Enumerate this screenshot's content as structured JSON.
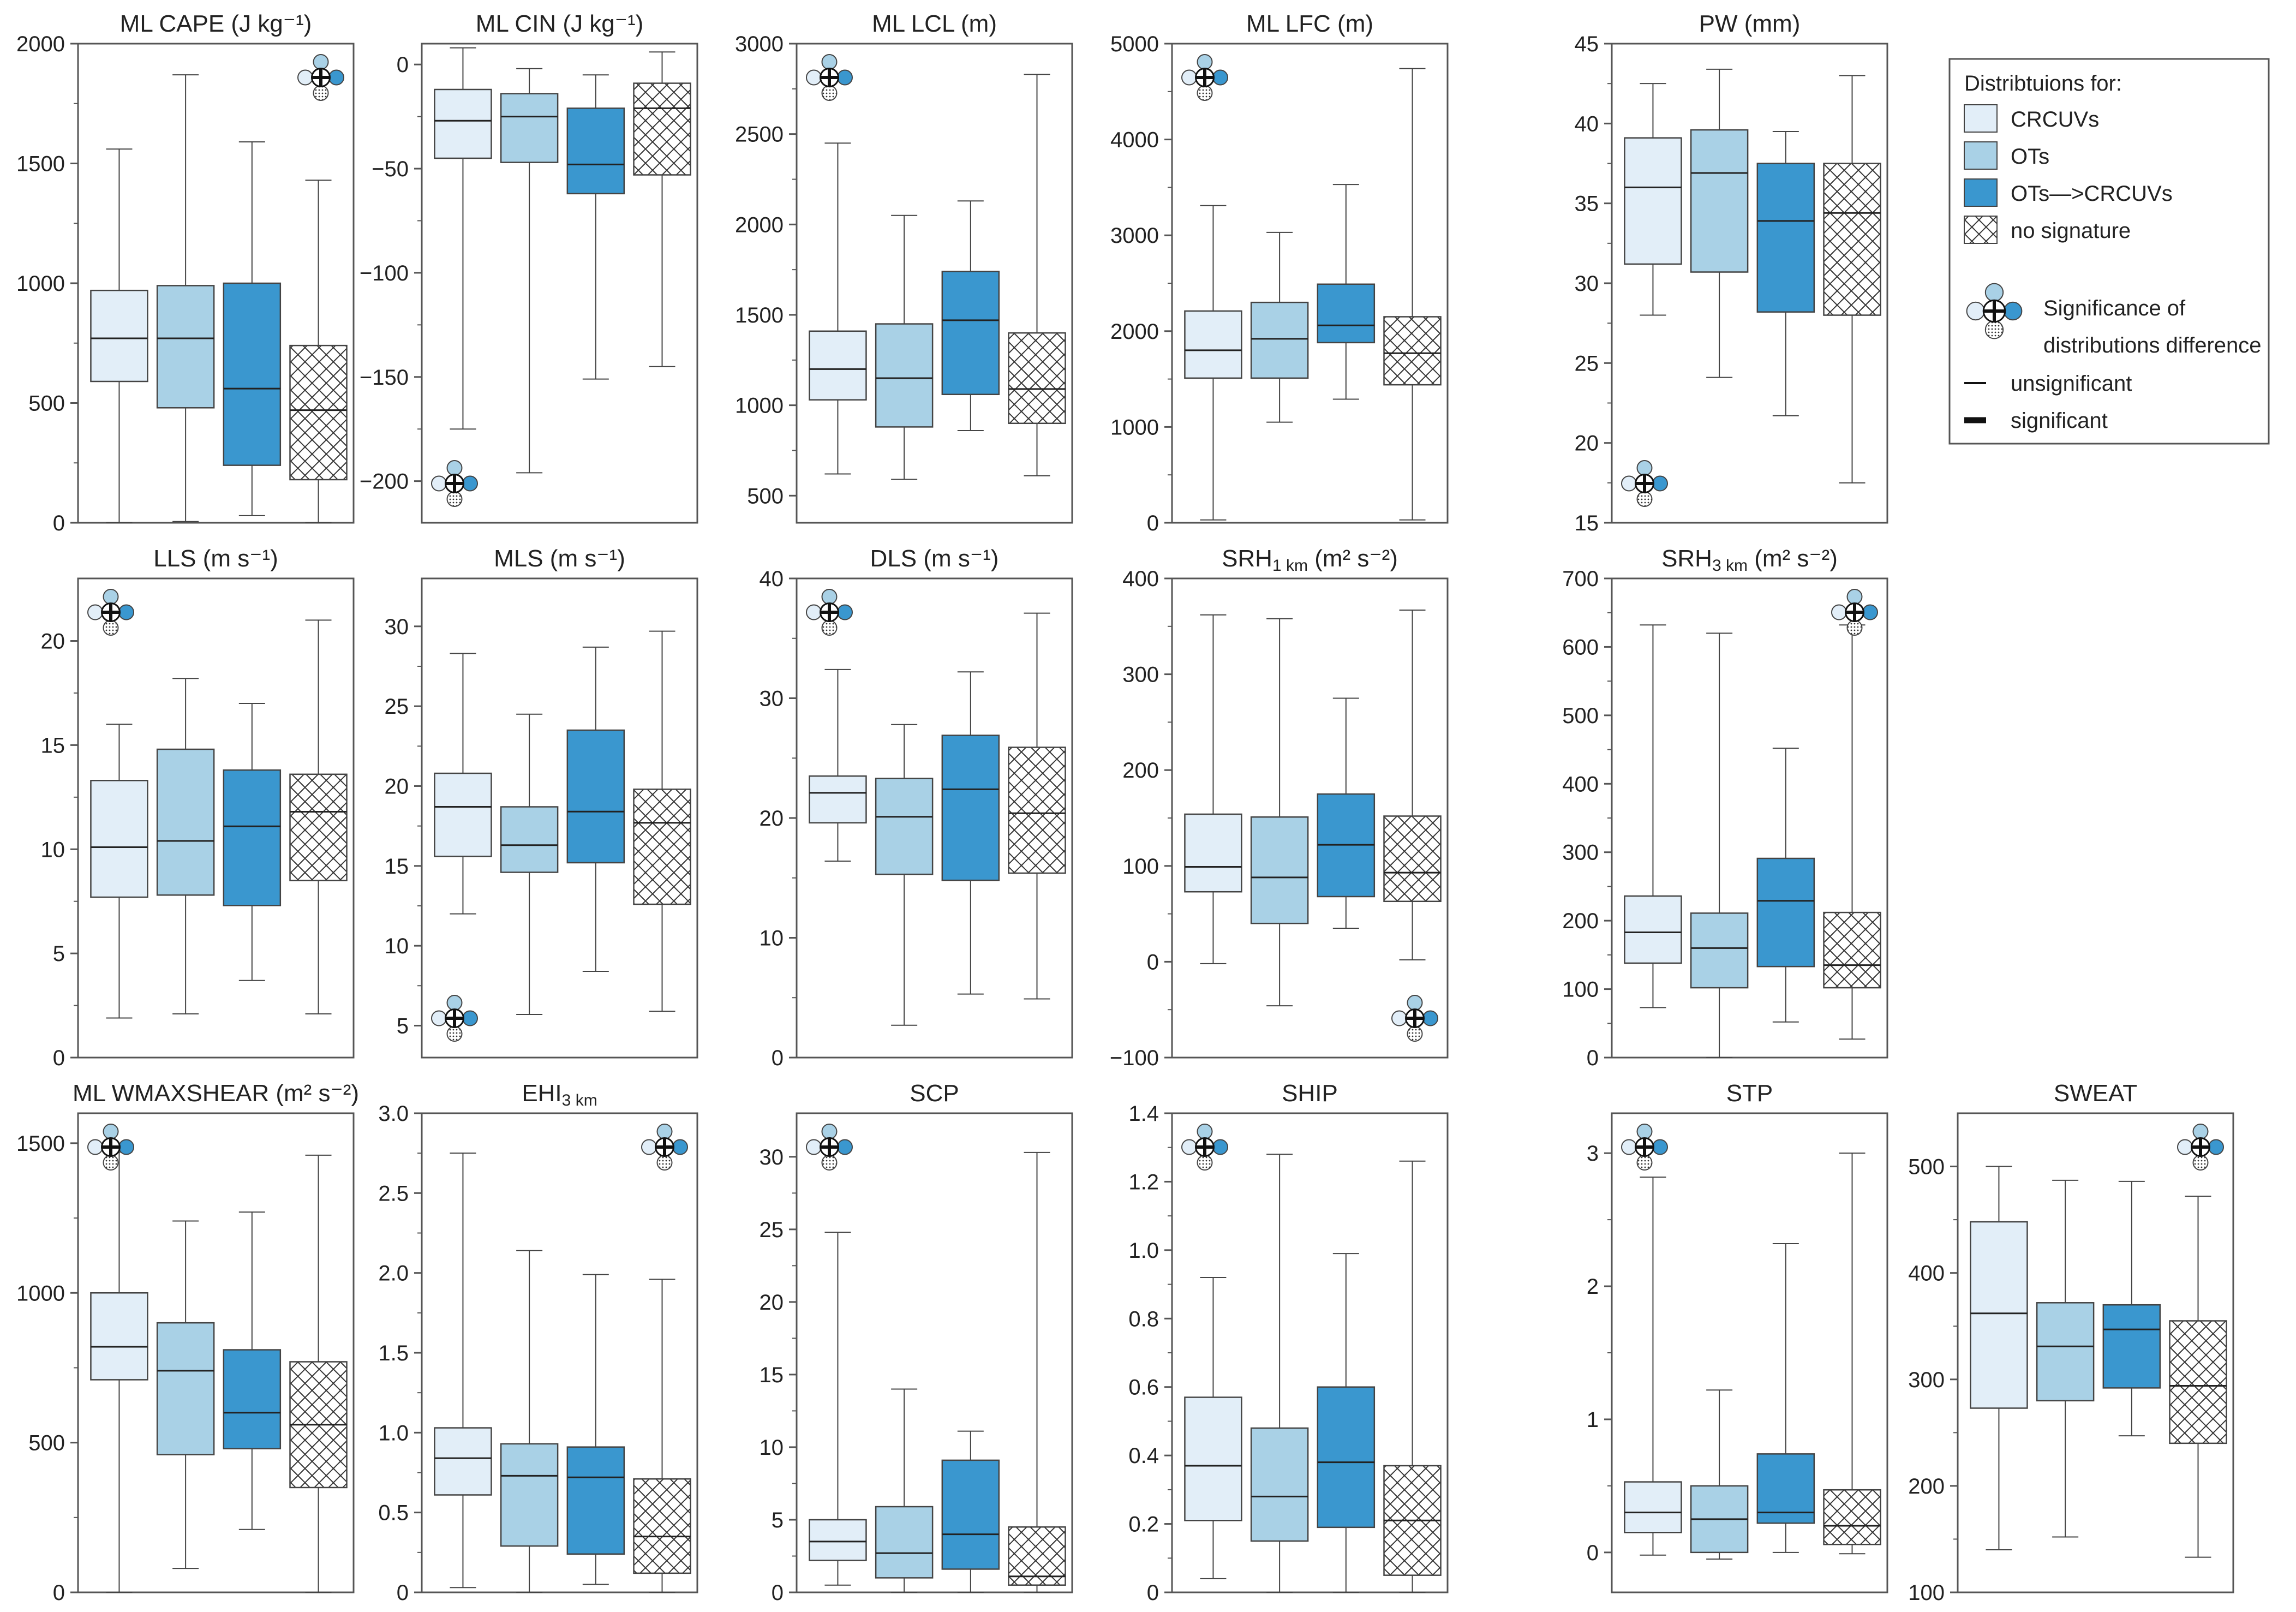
{
  "colors": {
    "crcuv": "#e2eef8",
    "ot": "#a9d1e6",
    "ot_to_crcuv": "#3a97cf",
    "none": "#ffffff",
    "edge": "#444444",
    "icon_top": "#a9d1e6",
    "icon_left": "#e2eef8",
    "icon_right": "#3a97cf"
  },
  "legend": {
    "title": "Distribtuions for:",
    "entries": [
      {
        "key": "crcuv",
        "label": "CRCUVs"
      },
      {
        "key": "ot",
        "label": "OTs"
      },
      {
        "key": "ot_to_crcuv",
        "label": "OTs—>CRCUVs"
      },
      {
        "key": "none",
        "label": "no signature"
      }
    ],
    "significance_line1": "Significance of",
    "significance_line2": "distributions difference",
    "unsignificant_label": "unsignificant",
    "significant_label": "significant"
  },
  "chart_data": [
    {
      "id": "mlcape",
      "type": "box",
      "title": "ML CAPE (J kg⁻¹)",
      "ylim": [
        0,
        2000
      ],
      "yticks": [
        0,
        500,
        1000,
        1500,
        2000
      ],
      "tick_labels": [
        "0",
        "500",
        "1000",
        "1500",
        "2000"
      ],
      "icon": "top-right",
      "boxes": [
        {
          "min": 0,
          "q1": 590,
          "median": 770,
          "q3": 970,
          "max": 1560
        },
        {
          "min": 5,
          "q1": 480,
          "median": 770,
          "q3": 990,
          "max": 1870
        },
        {
          "min": 30,
          "q1": 240,
          "median": 560,
          "q3": 1000,
          "max": 1590
        },
        {
          "min": 0,
          "q1": 180,
          "median": 470,
          "q3": 740,
          "max": 1430
        }
      ]
    },
    {
      "id": "mlcin",
      "type": "box",
      "title": "ML CIN (J kg⁻¹)",
      "ylim": [
        -220,
        10
      ],
      "yticks": [
        -200,
        -150,
        -100,
        -50,
        0
      ],
      "tick_labels": [
        "−200",
        "−150",
        "−100",
        "−50",
        "0"
      ],
      "icon": "bottom-left",
      "boxes": [
        {
          "min": -175,
          "q1": -45,
          "median": -27,
          "q3": -12,
          "max": 8
        },
        {
          "min": -196,
          "q1": -47,
          "median": -25,
          "q3": -14,
          "max": -2
        },
        {
          "min": -151,
          "q1": -62,
          "median": -48,
          "q3": -21,
          "max": -5
        },
        {
          "min": -145,
          "q1": -53,
          "median": -21,
          "q3": -9,
          "max": 6
        }
      ]
    },
    {
      "id": "mllcl",
      "type": "box",
      "title": "ML LCL (m)",
      "ylim": [
        350,
        3000
      ],
      "yticks": [
        500,
        1000,
        1500,
        2000,
        2500,
        3000
      ],
      "tick_labels": [
        "500",
        "1000",
        "1500",
        "2000",
        "2500",
        "3000"
      ],
      "icon": "top-left",
      "boxes": [
        {
          "min": 620,
          "q1": 1030,
          "median": 1200,
          "q3": 1410,
          "max": 2450
        },
        {
          "min": 590,
          "q1": 880,
          "median": 1150,
          "q3": 1450,
          "max": 2050
        },
        {
          "min": 860,
          "q1": 1060,
          "median": 1470,
          "q3": 1740,
          "max": 2130
        },
        {
          "min": 610,
          "q1": 900,
          "median": 1090,
          "q3": 1400,
          "max": 2830
        }
      ]
    },
    {
      "id": "mllfc",
      "type": "box",
      "title": "ML LFC (m)",
      "ylim": [
        0,
        5000
      ],
      "yticks": [
        0,
        1000,
        2000,
        3000,
        4000,
        5000
      ],
      "tick_labels": [
        "0",
        "1000",
        "2000",
        "3000",
        "4000",
        "5000"
      ],
      "icon": "top-left",
      "boxes": [
        {
          "min": 30,
          "q1": 1510,
          "median": 1800,
          "q3": 2210,
          "max": 3310
        },
        {
          "min": 1050,
          "q1": 1510,
          "median": 1920,
          "q3": 2300,
          "max": 3030
        },
        {
          "min": 1290,
          "q1": 1880,
          "median": 2060,
          "q3": 2490,
          "max": 3530
        },
        {
          "min": 30,
          "q1": 1440,
          "median": 1770,
          "q3": 2150,
          "max": 4740
        }
      ]
    },
    {
      "id": "pw",
      "type": "box",
      "title": "PW (mm)",
      "ylim": [
        15,
        45
      ],
      "yticks": [
        15,
        20,
        25,
        30,
        35,
        40,
        45
      ],
      "tick_labels": [
        "15",
        "20",
        "25",
        "30",
        "35",
        "40",
        "45"
      ],
      "icon": "bottom-left",
      "boxes": [
        {
          "min": 28,
          "q1": 31.2,
          "median": 36,
          "q3": 39.1,
          "max": 42.5
        },
        {
          "min": 24.1,
          "q1": 30.7,
          "median": 36.9,
          "q3": 39.6,
          "max": 43.4
        },
        {
          "min": 21.7,
          "q1": 28.2,
          "median": 33.9,
          "q3": 37.5,
          "max": 39.5
        },
        {
          "min": 17.5,
          "q1": 28,
          "median": 34.4,
          "q3": 37.5,
          "max": 43
        }
      ]
    },
    {
      "id": "lls",
      "type": "box",
      "title": "LLS (m s⁻¹)",
      "ylim": [
        0,
        23
      ],
      "yticks": [
        0,
        5,
        10,
        15,
        20
      ],
      "tick_labels": [
        "0",
        "5",
        "10",
        "15",
        "20"
      ],
      "icon": "top-left",
      "boxes": [
        {
          "min": 1.9,
          "q1": 7.7,
          "median": 10.1,
          "q3": 13.3,
          "max": 16
        }
      ],
      "boxes_extra": [
        {
          "min": 2.1,
          "q1": 7.8,
          "median": 10.4,
          "q3": 14.8,
          "max": 18.2
        },
        {
          "min": 3.7,
          "q1": 7.3,
          "median": 11.1,
          "q3": 13.8,
          "max": 17
        },
        {
          "min": 2.1,
          "q1": 8.5,
          "median": 11.8,
          "q3": 13.6,
          "max": 21
        }
      ]
    },
    {
      "id": "mls",
      "type": "box",
      "title": "MLS (m s⁻¹)",
      "ylim": [
        3,
        33
      ],
      "yticks": [
        5,
        10,
        15,
        20,
        25,
        30
      ],
      "tick_labels": [
        "5",
        "10",
        "15",
        "20",
        "25",
        "30"
      ],
      "icon": "bottom-left",
      "boxes": [
        {
          "min": 12,
          "q1": 15.6,
          "median": 18.7,
          "q3": 20.8,
          "max": 28.3
        },
        {
          "min": 5.7,
          "q1": 14.6,
          "median": 16.3,
          "q3": 18.7,
          "max": 24.5
        },
        {
          "min": 8.4,
          "q1": 15.2,
          "median": 18.4,
          "q3": 23.5,
          "max": 28.7
        },
        {
          "min": 5.9,
          "q1": 12.6,
          "median": 17.7,
          "q3": 19.8,
          "max": 29.7
        }
      ]
    },
    {
      "id": "dls",
      "type": "box",
      "title": "DLS (m s⁻¹)",
      "ylim": [
        0,
        40
      ],
      "yticks": [
        0,
        10,
        20,
        30,
        40
      ],
      "tick_labels": [
        "0",
        "10",
        "20",
        "30",
        "40"
      ],
      "icon": "top-left",
      "boxes": [
        {
          "min": 16.4,
          "q1": 19.6,
          "median": 22.1,
          "q3": 23.5,
          "max": 32.4
        },
        {
          "min": 2.7,
          "q1": 15.3,
          "median": 20.1,
          "q3": 23.3,
          "max": 27.8
        },
        {
          "min": 5.3,
          "q1": 14.8,
          "median": 22.4,
          "q3": 26.9,
          "max": 32.2
        },
        {
          "min": 4.9,
          "q1": 15.4,
          "median": 20.4,
          "q3": 25.9,
          "max": 37.1
        }
      ]
    },
    {
      "id": "srh1",
      "type": "box",
      "title": "SRH",
      "title_sub": "1 km",
      "title_unit": " (m² s⁻²)",
      "ylim": [
        -100,
        400
      ],
      "yticks": [
        -100,
        0,
        100,
        200,
        300,
        400
      ],
      "tick_labels": [
        "−100",
        "0",
        "100",
        "200",
        "300",
        "400"
      ],
      "icon": "bottom-right",
      "boxes": [
        {
          "min": -2,
          "q1": 73,
          "median": 99,
          "q3": 154,
          "max": 362
        },
        {
          "min": -46,
          "q1": 40,
          "median": 88,
          "q3": 151,
          "max": 358
        },
        {
          "min": 35,
          "q1": 68,
          "median": 122,
          "q3": 175,
          "max": 275
        },
        {
          "min": 2,
          "q1": 63,
          "median": 93,
          "q3": 152,
          "max": 367
        }
      ]
    },
    {
      "id": "srh3",
      "type": "box",
      "title": "SRH",
      "title_sub": "3 km",
      "title_unit": " (m² s⁻²)",
      "ylim": [
        0,
        700
      ],
      "yticks": [
        0,
        100,
        200,
        300,
        400,
        500,
        600,
        700
      ],
      "tick_labels": [
        "0",
        "100",
        "200",
        "300",
        "400",
        "500",
        "600",
        "700"
      ],
      "icon": "top-right",
      "boxes": [
        {
          "min": 73,
          "q1": 138,
          "median": 183,
          "q3": 236,
          "max": 632
        },
        {
          "min": 0,
          "q1": 102,
          "median": 160,
          "q3": 211,
          "max": 620
        },
        {
          "min": 52,
          "q1": 133,
          "median": 229,
          "q3": 291,
          "max": 452
        },
        {
          "min": 27,
          "q1": 102,
          "median": 135,
          "q3": 212,
          "max": 632
        }
      ]
    },
    {
      "id": "mlwmaxshear",
      "type": "box",
      "title": "ML WMAXSHEAR (m² s⁻²)",
      "ylim": [
        0,
        1600
      ],
      "yticks": [
        0,
        500,
        1000,
        1500
      ],
      "tick_labels": [
        "0",
        "500",
        "1000",
        "1500"
      ],
      "icon": "top-left",
      "boxes": [
        {
          "min": 0,
          "q1": 710,
          "median": 820,
          "q3": 1000,
          "max": 1470
        },
        {
          "min": 80,
          "q1": 460,
          "median": 740,
          "q3": 900,
          "max": 1240
        },
        {
          "min": 210,
          "q1": 480,
          "median": 600,
          "q3": 810,
          "max": 1270
        },
        {
          "min": 0,
          "q1": 350,
          "median": 560,
          "q3": 770,
          "max": 1460
        }
      ]
    },
    {
      "id": "ehi3",
      "type": "box",
      "title": "EHI",
      "title_sub": "3 km",
      "title_unit": "",
      "ylim": [
        0,
        3
      ],
      "yticks": [
        0,
        0.5,
        1,
        1.5,
        2,
        2.5,
        3
      ],
      "tick_labels": [
        "0",
        "0.5",
        "1.0",
        "1.5",
        "2.0",
        "2.5",
        "3.0"
      ],
      "icon": "top-right",
      "boxes": [
        {
          "min": 0.03,
          "q1": 0.61,
          "median": 0.84,
          "q3": 1.03,
          "max": 2.75
        },
        {
          "min": 0,
          "q1": 0.29,
          "median": 0.73,
          "q3": 0.93,
          "max": 2.14
        },
        {
          "min": 0.05,
          "q1": 0.24,
          "median": 0.72,
          "q3": 0.91,
          "max": 1.99
        },
        {
          "min": 0,
          "q1": 0.12,
          "median": 0.35,
          "q3": 0.71,
          "max": 1.96
        }
      ]
    },
    {
      "id": "scp",
      "type": "box",
      "title": "SCP",
      "ylim": [
        0,
        33
      ],
      "yticks": [
        0,
        5,
        10,
        15,
        20,
        25,
        30
      ],
      "tick_labels": [
        "0",
        "5",
        "10",
        "15",
        "20",
        "25",
        "30"
      ],
      "icon": "top-left",
      "boxes": [
        {
          "min": 0.5,
          "q1": 2.2,
          "median": 3.5,
          "q3": 5,
          "max": 24.8
        },
        {
          "min": 0,
          "q1": 1,
          "median": 2.7,
          "q3": 5.9,
          "max": 14
        },
        {
          "min": 0,
          "q1": 1.6,
          "median": 4,
          "q3": 9.1,
          "max": 11.1
        },
        {
          "min": 0,
          "q1": 0.5,
          "median": 1.1,
          "q3": 4.5,
          "max": 30.3
        }
      ]
    },
    {
      "id": "ship",
      "type": "box",
      "title": "SHIP",
      "ylim": [
        0,
        1.4
      ],
      "yticks": [
        0,
        0.2,
        0.4,
        0.6,
        0.8,
        1,
        1.2,
        1.4
      ],
      "tick_labels": [
        "0",
        "0.2",
        "0.4",
        "0.6",
        "0.8",
        "1.0",
        "1.2",
        "1.4"
      ],
      "icon": "top-left",
      "boxes": [
        {
          "min": 0.04,
          "q1": 0.21,
          "median": 0.37,
          "q3": 0.57,
          "max": 0.92
        },
        {
          "min": 0,
          "q1": 0.15,
          "median": 0.28,
          "q3": 0.48,
          "max": 1.28
        },
        {
          "min": 0,
          "q1": 0.19,
          "median": 0.38,
          "q3": 0.6,
          "max": 0.99
        },
        {
          "min": 0,
          "q1": 0.05,
          "median": 0.21,
          "q3": 0.37,
          "max": 1.26
        }
      ]
    },
    {
      "id": "stp",
      "type": "box",
      "title": "STP",
      "ylim": [
        -0.3,
        3.3
      ],
      "yticks": [
        0,
        1,
        2,
        3
      ],
      "tick_labels": [
        "0",
        "1",
        "2",
        "3"
      ],
      "icon": "top-left",
      "boxes": [
        {
          "min": -0.02,
          "q1": 0.15,
          "median": 0.3,
          "q3": 0.53,
          "max": 2.82
        },
        {
          "min": -0.05,
          "q1": 0,
          "median": 0.25,
          "q3": 0.5,
          "max": 1.22
        },
        {
          "min": 0,
          "q1": 0.22,
          "median": 0.3,
          "q3": 0.74,
          "max": 2.32
        },
        {
          "min": -0.01,
          "q1": 0.06,
          "median": 0.2,
          "q3": 0.47,
          "max": 3
        }
      ]
    },
    {
      "id": "sweat",
      "type": "box",
      "title": "SWEAT",
      "ylim": [
        100,
        550
      ],
      "yticks": [
        100,
        200,
        300,
        400,
        500
      ],
      "tick_labels": [
        "100",
        "200",
        "300",
        "400",
        "500"
      ],
      "icon": "top-right",
      "boxes": [
        {
          "min": 140,
          "q1": 273,
          "median": 362,
          "q3": 448,
          "max": 500
        },
        {
          "min": 152,
          "q1": 280,
          "median": 331,
          "q3": 372,
          "max": 487
        },
        {
          "min": 247,
          "q1": 292,
          "median": 347,
          "q3": 370,
          "max": 486
        },
        {
          "min": 133,
          "q1": 240,
          "median": 294,
          "q3": 355,
          "max": 472
        }
      ]
    }
  ]
}
